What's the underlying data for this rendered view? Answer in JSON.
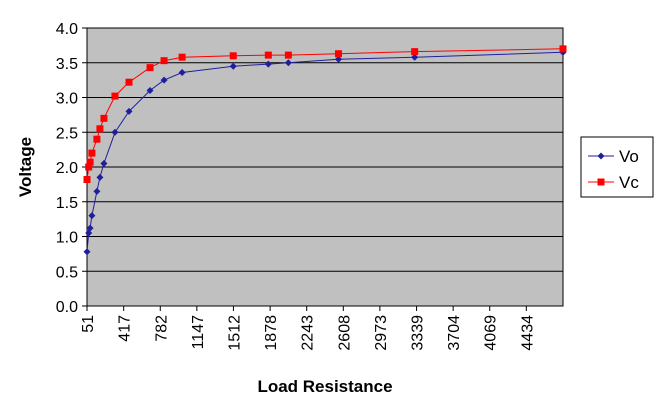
{
  "chart_data": {
    "type": "line",
    "xlabel": "Load Resistance",
    "ylabel": "Voltage",
    "xlim": [
      51,
      4800
    ],
    "ylim": [
      0,
      4
    ],
    "x_ticks": [
      51,
      417,
      782,
      1147,
      1512,
      1878,
      2243,
      2608,
      2973,
      3339,
      3704,
      4069,
      4434
    ],
    "y_ticks": [
      "0.0",
      "0.5",
      "1.0",
      "1.5",
      "2.0",
      "2.5",
      "3.0",
      "3.5",
      "4.0"
    ],
    "grid": true,
    "legend_position": "right",
    "background_color": "#c0c0c0",
    "series": [
      {
        "name": "Vo",
        "color": "#1f1f9e",
        "marker": "diamond",
        "x": [
          51,
          68,
          82,
          100,
          150,
          180,
          220,
          330,
          470,
          680,
          820,
          1000,
          1510,
          1860,
          2060,
          2560,
          3320,
          4800
        ],
        "y": [
          0.78,
          1.05,
          1.12,
          1.3,
          1.65,
          1.85,
          2.05,
          2.5,
          2.8,
          3.1,
          3.25,
          3.36,
          3.45,
          3.48,
          3.5,
          3.55,
          3.58,
          3.65
        ]
      },
      {
        "name": "Vc",
        "color": "#ff0000",
        "marker": "square",
        "x": [
          51,
          68,
          82,
          100,
          150,
          180,
          220,
          330,
          470,
          680,
          820,
          1000,
          1510,
          1860,
          2060,
          2560,
          3320,
          4800
        ],
        "y": [
          1.82,
          2.0,
          2.07,
          2.2,
          2.4,
          2.55,
          2.7,
          3.02,
          3.22,
          3.43,
          3.53,
          3.58,
          3.6,
          3.61,
          3.61,
          3.63,
          3.66,
          3.7
        ]
      }
    ]
  }
}
